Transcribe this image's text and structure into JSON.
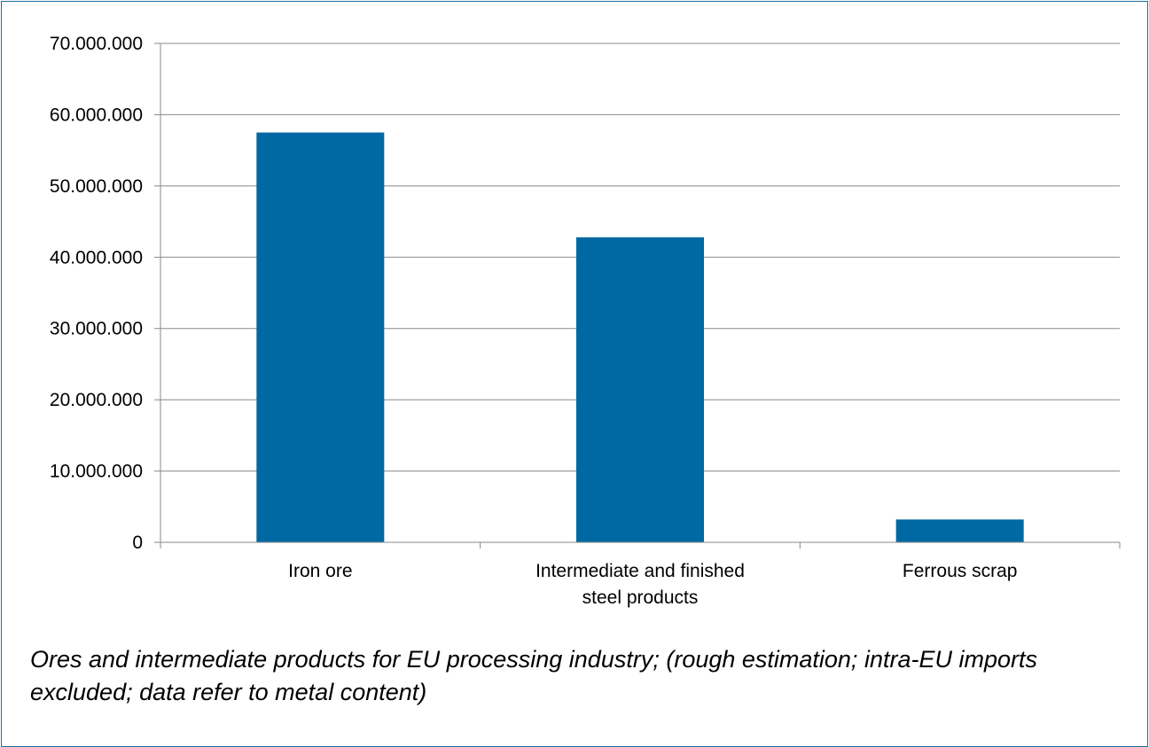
{
  "chart_data": {
    "type": "bar",
    "categories": [
      [
        "Iron ore"
      ],
      [
        "Intermediate and finished",
        "steel products"
      ],
      [
        "Ferrous scrap"
      ]
    ],
    "series": [
      {
        "values": [
          57500000,
          42800000,
          3200000
        ],
        "color": "#0068a2"
      }
    ],
    "y_ticks": [
      "0",
      "10.000.000",
      "20.000.000",
      "30.000.000",
      "40.000.000",
      "50.000.000",
      "60.000.000",
      "70.000.000"
    ],
    "ylim": [
      0,
      70000000
    ],
    "grid": true,
    "legend": "none"
  },
  "caption": "Ores and intermediate products for EU processing industry; (rough estimation; intra-EU imports excluded; data refer to metal content)"
}
